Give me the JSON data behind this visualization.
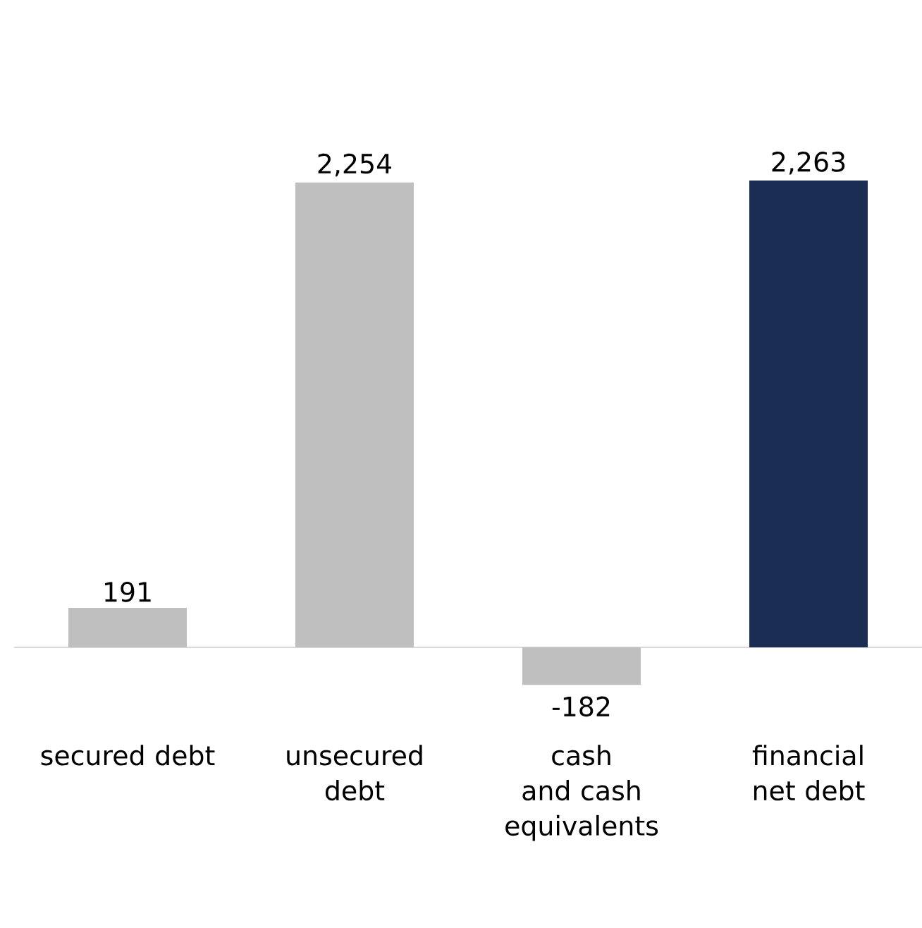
{
  "chart_data": {
    "type": "bar",
    "categories": [
      "secured debt",
      "unsecured debt",
      "cash and cash equivalents",
      "financial net debt"
    ],
    "values": [
      191,
      2254,
      -182,
      2263
    ],
    "value_labels": [
      "191",
      "2,254",
      "-182",
      "2,263"
    ],
    "colors": [
      "#bfbfbf",
      "#bfbfbf",
      "#bfbfbf",
      "#1b2d53"
    ]
  }
}
